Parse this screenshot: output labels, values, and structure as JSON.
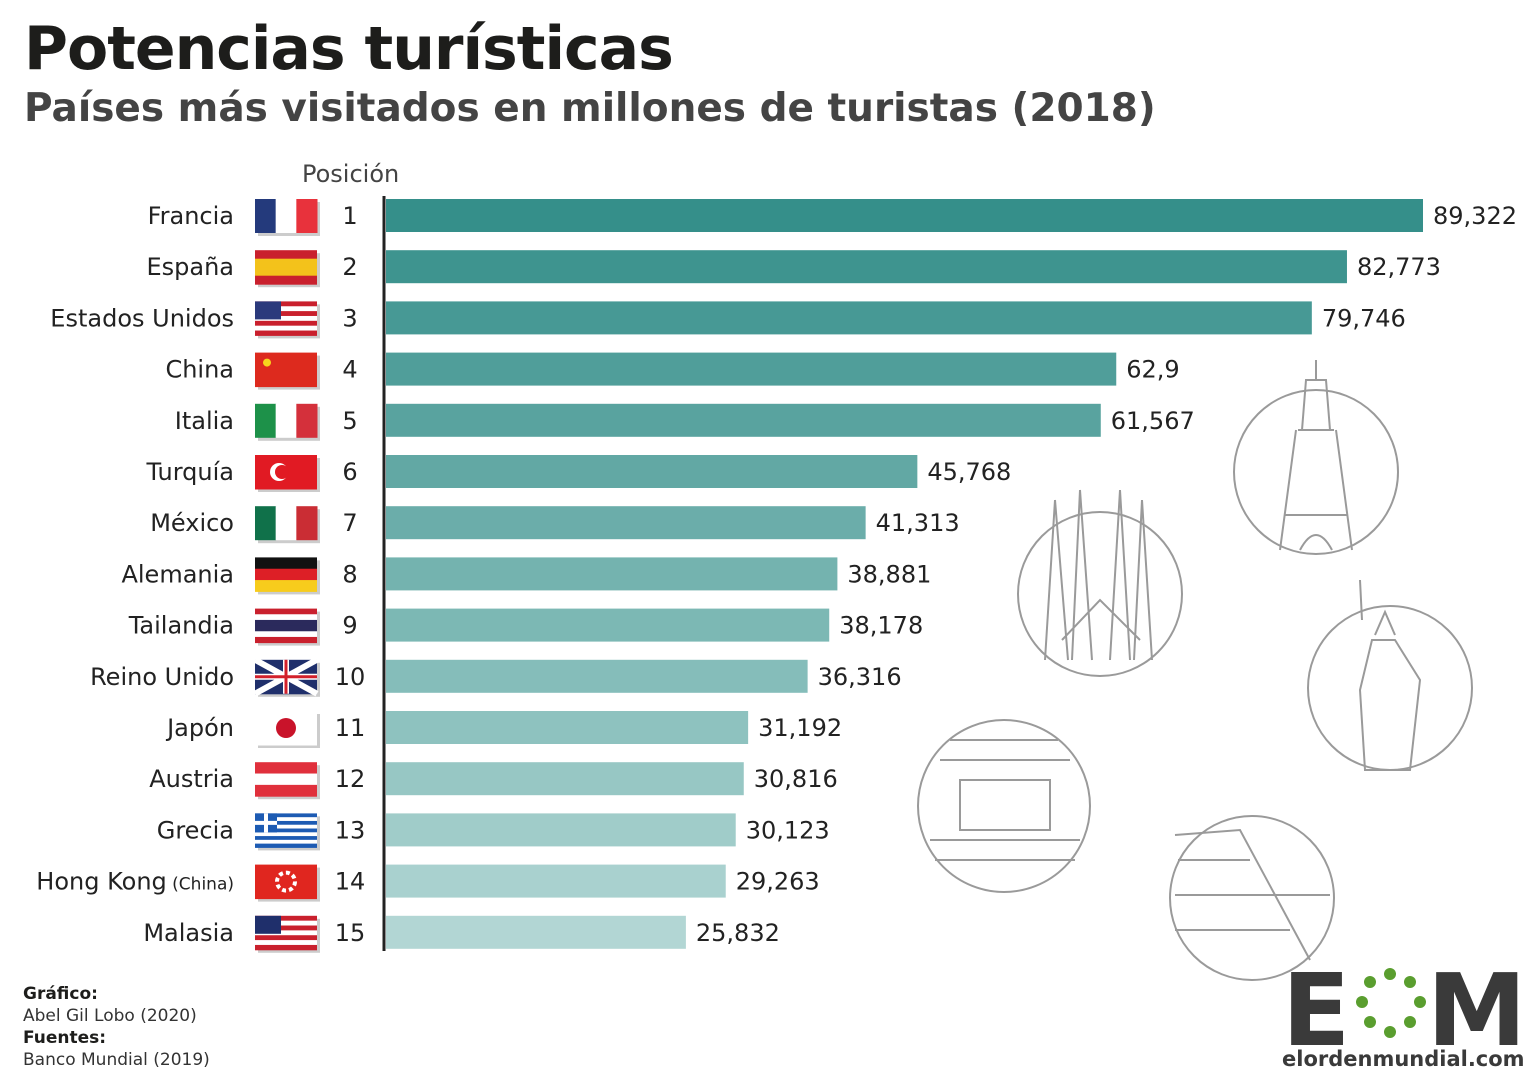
{
  "header": {
    "title": "Potencias turísticas",
    "subtitle": "Países más visitados en millones de turistas (2018)"
  },
  "position_header": "Posición",
  "credits": {
    "graphic_label": "Gráfico:",
    "graphic_author": "Abel Gil Lobo (2020)",
    "sources_label": "Fuentes:",
    "sources": "Banco Mundial (2019)"
  },
  "logo": {
    "text": "EOM",
    "url": "elordenmundial.com",
    "accent": "#5a9e2f"
  },
  "colors": {
    "bar_start": "#358f8a",
    "bar_end": "#b2d6d4",
    "axis": "#222222",
    "illustration": "#9a9a9a"
  },
  "chart_data": {
    "type": "bar",
    "orientation": "horizontal",
    "title": "Potencias turísticas",
    "subtitle": "Países más visitados en millones de turistas (2018)",
    "xlim": [
      0,
      89.322
    ],
    "grid": false,
    "categories": [
      "Francia",
      "España",
      "Estados Unidos",
      "China",
      "Italia",
      "Turquía",
      "México",
      "Alemania",
      "Tailandia",
      "Reino Unido",
      "Japón",
      "Austria",
      "Grecia",
      "Hong Kong",
      "Malasia"
    ],
    "category_notes": [
      "",
      "",
      "",
      "",
      "",
      "",
      "",
      "",
      "",
      "",
      "",
      "",
      "",
      "(China)",
      ""
    ],
    "positions": [
      "1",
      "2",
      "3",
      "4",
      "5",
      "6",
      "7",
      "8",
      "9",
      "10",
      "11",
      "12",
      "13",
      "14",
      "15"
    ],
    "flags": [
      "flag-france-icon",
      "flag-spain-icon",
      "flag-usa-icon",
      "flag-china-icon",
      "flag-italy-icon",
      "flag-turkey-icon",
      "flag-mexico-icon",
      "flag-germany-icon",
      "flag-thailand-icon",
      "flag-uk-icon",
      "flag-japan-icon",
      "flag-austria-icon",
      "flag-greece-icon",
      "flag-hongkong-icon",
      "flag-malaysia-icon"
    ],
    "values": [
      89.322,
      82.773,
      79.746,
      62.9,
      61.567,
      45.768,
      41.313,
      38.881,
      38.178,
      36.316,
      31.192,
      30.816,
      30.123,
      29.263,
      25.832
    ],
    "value_labels": [
      "89,322",
      "82,773",
      "79,746",
      "62,9",
      "61,567",
      "45,768",
      "41,313",
      "38,881",
      "38,178",
      "36,316",
      "31,192",
      "30,816",
      "30,123",
      "29,263",
      "25,832"
    ]
  }
}
